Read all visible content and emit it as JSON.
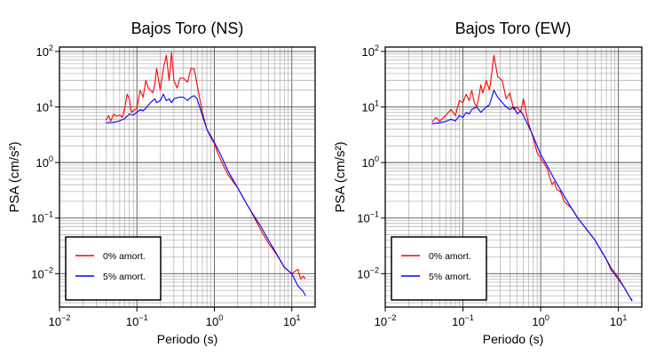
{
  "chart_data": [
    {
      "type": "line",
      "title": "Bajos Toro (NS)",
      "xlabel": "Periodo (s)",
      "ylabel": "PSA (cm/s²)",
      "xscale": "log",
      "yscale": "log",
      "xlim": [
        0.01,
        20
      ],
      "ylim": [
        0.0025,
        120
      ],
      "xticks": [
        {
          "base": "10",
          "exp": "−2"
        },
        {
          "base": "10",
          "exp": "−1"
        },
        {
          "base": "10",
          "exp": "0"
        },
        {
          "base": "10",
          "exp": "1"
        }
      ],
      "yticks": [
        {
          "base": "10",
          "exp": "−2"
        },
        {
          "base": "10",
          "exp": "−1"
        },
        {
          "base": "10",
          "exp": "0"
        },
        {
          "base": "10",
          "exp": "1"
        },
        {
          "base": "10",
          "exp": "2"
        }
      ],
      "grid": true,
      "legend_position": "bottom-left",
      "series": [
        {
          "name": "0% amort.",
          "color": "#ff0000",
          "points": [
            [
              0.04,
              5.8
            ],
            [
              0.043,
              7
            ],
            [
              0.046,
              5.6
            ],
            [
              0.05,
              7.5
            ],
            [
              0.055,
              6.8
            ],
            [
              0.06,
              7.2
            ],
            [
              0.065,
              6.5
            ],
            [
              0.07,
              10
            ],
            [
              0.075,
              17
            ],
            [
              0.08,
              14
            ],
            [
              0.085,
              8
            ],
            [
              0.09,
              8.5
            ],
            [
              0.1,
              9.5
            ],
            [
              0.11,
              20
            ],
            [
              0.12,
              15
            ],
            [
              0.13,
              30
            ],
            [
              0.14,
              22
            ],
            [
              0.15,
              20
            ],
            [
              0.16,
              18
            ],
            [
              0.17,
              25
            ],
            [
              0.18,
              50
            ],
            [
              0.2,
              20
            ],
            [
              0.22,
              50
            ],
            [
              0.24,
              85
            ],
            [
              0.26,
              30
            ],
            [
              0.28,
              95
            ],
            [
              0.3,
              30
            ],
            [
              0.33,
              22
            ],
            [
              0.36,
              33
            ],
            [
              0.4,
              33
            ],
            [
              0.45,
              28
            ],
            [
              0.5,
              50
            ],
            [
              0.55,
              48
            ],
            [
              0.6,
              25
            ],
            [
              0.7,
              8
            ],
            [
              0.8,
              4
            ],
            [
              0.9,
              2.8
            ],
            [
              1.0,
              2.2
            ],
            [
              1.1,
              1.5
            ],
            [
              1.3,
              0.9
            ],
            [
              1.5,
              0.6
            ],
            [
              2.0,
              0.35
            ],
            [
              2.5,
              0.2
            ],
            [
              3.0,
              0.13
            ],
            [
              3.5,
              0.085
            ],
            [
              4.0,
              0.06
            ],
            [
              5.0,
              0.035
            ],
            [
              6.0,
              0.025
            ],
            [
              7.0,
              0.018
            ],
            [
              8.0,
              0.013
            ],
            [
              10,
              0.01
            ],
            [
              12,
              0.012
            ],
            [
              13,
              0.008
            ],
            [
              14,
              0.009
            ],
            [
              15,
              0.008
            ]
          ]
        },
        {
          "name": "5% amort.",
          "color": "#0000ff",
          "points": [
            [
              0.04,
              5.2
            ],
            [
              0.05,
              5.3
            ],
            [
              0.06,
              5.6
            ],
            [
              0.07,
              6.2
            ],
            [
              0.08,
              7.5
            ],
            [
              0.09,
              7.2
            ],
            [
              0.1,
              8
            ],
            [
              0.11,
              9
            ],
            [
              0.12,
              8.5
            ],
            [
              0.13,
              9.5
            ],
            [
              0.15,
              12
            ],
            [
              0.17,
              14
            ],
            [
              0.18,
              12
            ],
            [
              0.2,
              13
            ],
            [
              0.22,
              17
            ],
            [
              0.24,
              13
            ],
            [
              0.26,
              14
            ],
            [
              0.28,
              12
            ],
            [
              0.3,
              14
            ],
            [
              0.35,
              15
            ],
            [
              0.4,
              15
            ],
            [
              0.45,
              13
            ],
            [
              0.5,
              15
            ],
            [
              0.55,
              16
            ],
            [
              0.6,
              14
            ],
            [
              0.7,
              7
            ],
            [
              0.8,
              4
            ],
            [
              0.9,
              3
            ],
            [
              1.0,
              2.3
            ],
            [
              1.2,
              1.4
            ],
            [
              1.5,
              0.7
            ],
            [
              2.0,
              0.35
            ],
            [
              2.5,
              0.2
            ],
            [
              3.0,
              0.13
            ],
            [
              4.0,
              0.07
            ],
            [
              5.0,
              0.04
            ],
            [
              6.0,
              0.026
            ],
            [
              7.0,
              0.018
            ],
            [
              8.0,
              0.013
            ],
            [
              10,
              0.01
            ],
            [
              12,
              0.006
            ],
            [
              14,
              0.0048
            ],
            [
              15,
              0.004
            ]
          ]
        }
      ]
    },
    {
      "type": "line",
      "title": "Bajos Toro (EW)",
      "xlabel": "Periodo (s)",
      "ylabel": "PSA (cm/s²)",
      "xscale": "log",
      "yscale": "log",
      "xlim": [
        0.01,
        20
      ],
      "ylim": [
        0.0025,
        120
      ],
      "xticks": [
        {
          "base": "10",
          "exp": "−2"
        },
        {
          "base": "10",
          "exp": "−1"
        },
        {
          "base": "10",
          "exp": "0"
        },
        {
          "base": "10",
          "exp": "1"
        }
      ],
      "yticks": [
        {
          "base": "10",
          "exp": "−2"
        },
        {
          "base": "10",
          "exp": "−1"
        },
        {
          "base": "10",
          "exp": "0"
        },
        {
          "base": "10",
          "exp": "1"
        },
        {
          "base": "10",
          "exp": "2"
        }
      ],
      "grid": true,
      "legend_position": "bottom-left",
      "series": [
        {
          "name": "0% amort.",
          "color": "#ff0000",
          "points": [
            [
              0.04,
              5.3
            ],
            [
              0.045,
              6.5
            ],
            [
              0.05,
              5.5
            ],
            [
              0.06,
              7
            ],
            [
              0.07,
              9
            ],
            [
              0.08,
              7
            ],
            [
              0.09,
              13
            ],
            [
              0.1,
              12
            ],
            [
              0.11,
              17
            ],
            [
              0.12,
              13
            ],
            [
              0.13,
              20
            ],
            [
              0.14,
              12
            ],
            [
              0.15,
              10
            ],
            [
              0.16,
              15
            ],
            [
              0.17,
              25
            ],
            [
              0.18,
              18
            ],
            [
              0.2,
              30
            ],
            [
              0.22,
              20
            ],
            [
              0.25,
              85
            ],
            [
              0.28,
              35
            ],
            [
              0.32,
              30
            ],
            [
              0.36,
              14
            ],
            [
              0.4,
              18
            ],
            [
              0.45,
              9
            ],
            [
              0.5,
              10
            ],
            [
              0.55,
              8
            ],
            [
              0.6,
              14
            ],
            [
              0.65,
              8
            ],
            [
              0.7,
              5
            ],
            [
              0.8,
              2.8
            ],
            [
              0.9,
              1.5
            ],
            [
              1.0,
              1.2
            ],
            [
              1.2,
              0.8
            ],
            [
              1.4,
              0.4
            ],
            [
              1.5,
              0.45
            ],
            [
              1.6,
              0.33
            ],
            [
              1.8,
              0.3
            ],
            [
              2.0,
              0.2
            ],
            [
              2.5,
              0.15
            ],
            [
              3.0,
              0.1
            ],
            [
              4.0,
              0.06
            ],
            [
              5.0,
              0.04
            ],
            [
              6.0,
              0.026
            ],
            [
              7.0,
              0.018
            ],
            [
              8.0,
              0.013
            ],
            [
              10,
              0.0085
            ],
            [
              12,
              0.0055
            ],
            [
              14,
              0.0038
            ],
            [
              15,
              0.0033
            ]
          ]
        },
        {
          "name": "5% amort.",
          "color": "#0000ff",
          "points": [
            [
              0.04,
              5
            ],
            [
              0.05,
              5.2
            ],
            [
              0.06,
              5.5
            ],
            [
              0.07,
              6
            ],
            [
              0.08,
              5.6
            ],
            [
              0.09,
              7
            ],
            [
              0.1,
              6.5
            ],
            [
              0.11,
              8
            ],
            [
              0.12,
              7.5
            ],
            [
              0.13,
              9
            ],
            [
              0.15,
              10
            ],
            [
              0.17,
              8
            ],
            [
              0.2,
              10
            ],
            [
              0.22,
              11
            ],
            [
              0.25,
              20
            ],
            [
              0.28,
              15
            ],
            [
              0.32,
              12
            ],
            [
              0.36,
              10
            ],
            [
              0.4,
              9
            ],
            [
              0.45,
              10
            ],
            [
              0.5,
              7.5
            ],
            [
              0.55,
              8.5
            ],
            [
              0.6,
              7
            ],
            [
              0.7,
              4.5
            ],
            [
              0.8,
              3
            ],
            [
              0.9,
              2
            ],
            [
              1.0,
              1.4
            ],
            [
              1.2,
              0.9
            ],
            [
              1.5,
              0.5
            ],
            [
              2.0,
              0.25
            ],
            [
              2.5,
              0.15
            ],
            [
              3.0,
              0.1
            ],
            [
              4.0,
              0.06
            ],
            [
              5.0,
              0.04
            ],
            [
              6.0,
              0.026
            ],
            [
              7.0,
              0.018
            ],
            [
              8.0,
              0.012
            ],
            [
              10,
              0.008
            ],
            [
              12,
              0.0055
            ],
            [
              14,
              0.0038
            ],
            [
              15,
              0.0032
            ]
          ]
        }
      ]
    }
  ]
}
